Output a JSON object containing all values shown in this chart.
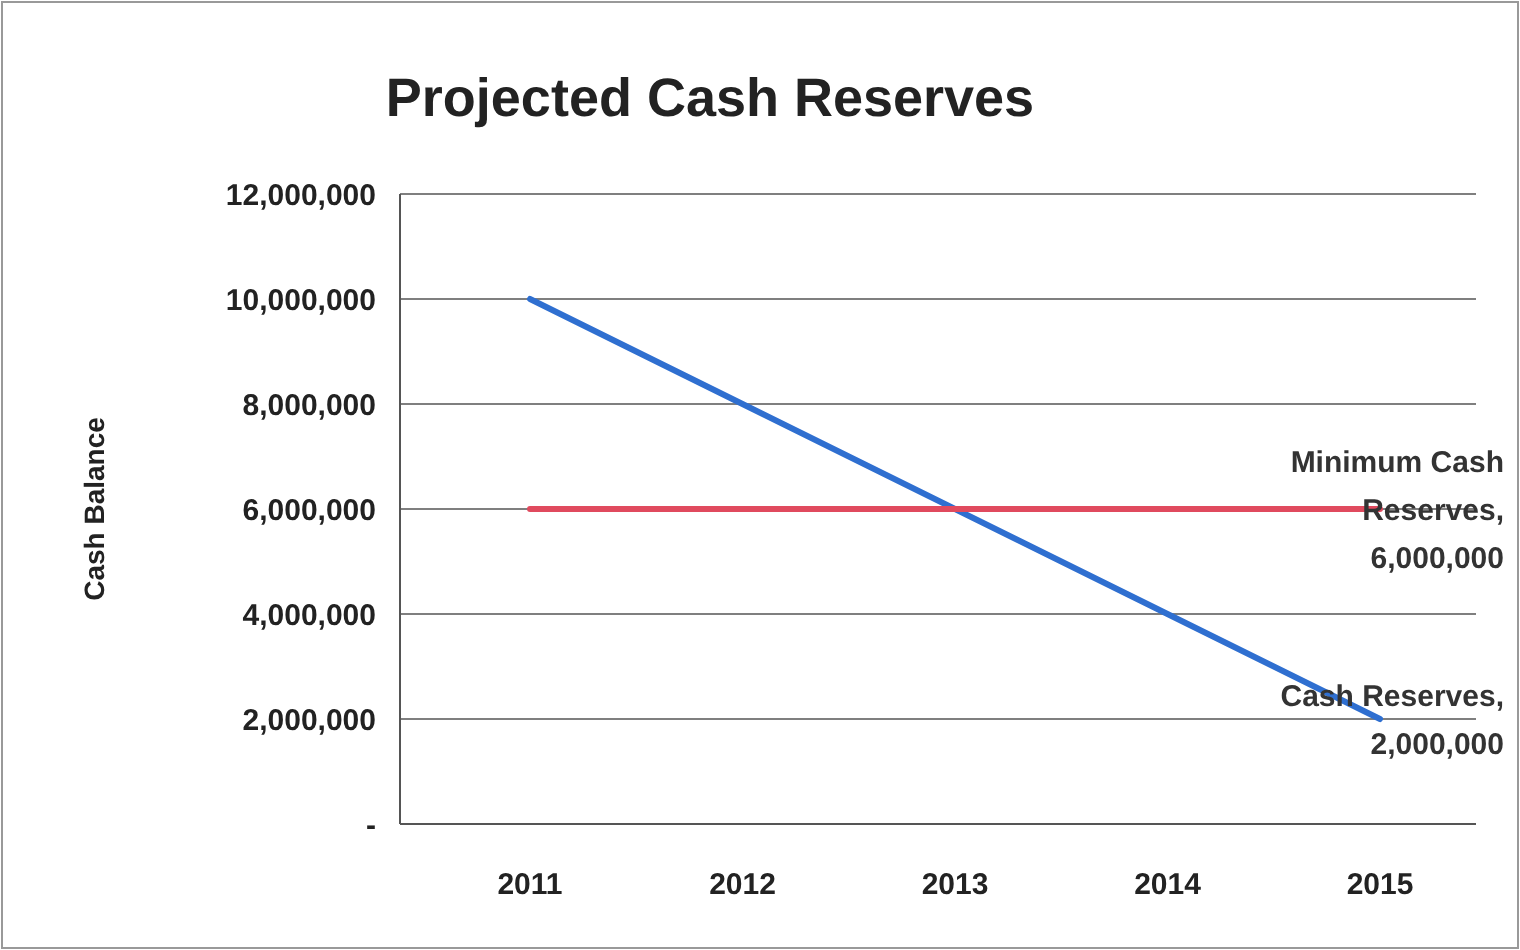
{
  "chart_data": {
    "type": "line",
    "title": "Projected Cash Reserves",
    "ylabel": "Cash Balance",
    "categories": [
      "2011",
      "2012",
      "2013",
      "2014",
      "2015"
    ],
    "series": [
      {
        "name": "Cash Reserves,",
        "color": "#2f6fd0",
        "values": [
          10000000,
          8000000,
          6000000,
          4000000,
          2000000
        ],
        "value_labels": [
          null,
          null,
          null,
          null,
          "2,000,000"
        ]
      },
      {
        "name": "Minimum Cash Reserves,",
        "color": "#e04a5e",
        "values": [
          6000000,
          6000000,
          6000000,
          6000000,
          6000000
        ],
        "value_labels": [
          null,
          null,
          null,
          null,
          "6,000,000"
        ]
      }
    ],
    "ylim": [
      0,
      12000000
    ],
    "yticks": [
      {
        "value": 0,
        "label": "-"
      },
      {
        "value": 2000000,
        "label": "2,000,000"
      },
      {
        "value": 4000000,
        "label": "4,000,000"
      },
      {
        "value": 6000000,
        "label": "6,000,000"
      },
      {
        "value": 8000000,
        "label": "8,000,000"
      },
      {
        "value": 10000000,
        "label": "10,000,000"
      },
      {
        "value": 12000000,
        "label": "12,000,000"
      }
    ],
    "grid": "y",
    "legend": false,
    "marker": "none",
    "line_style": "solid"
  }
}
